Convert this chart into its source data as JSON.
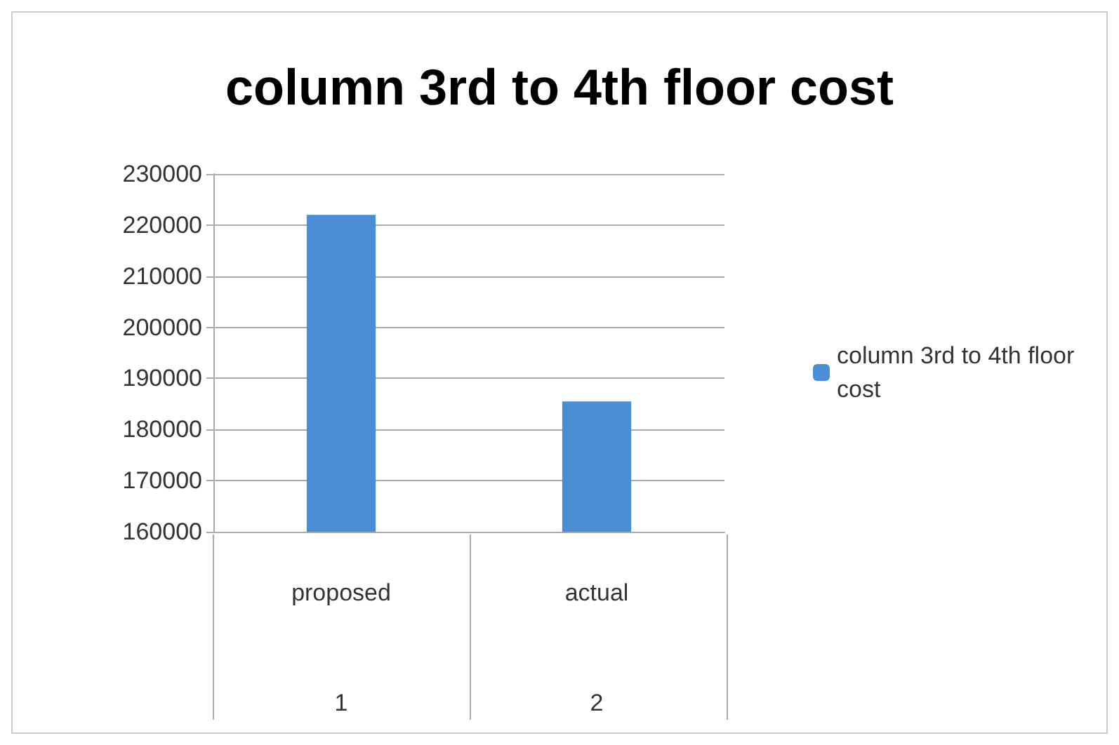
{
  "chart_data": {
    "type": "bar",
    "title": "column 3rd to 4th floor cost",
    "categories": [
      "proposed",
      "actual"
    ],
    "series": [
      {
        "name": "column 3rd to 4th floor cost",
        "color": "#4a8fd6",
        "values": [
          222000,
          185500
        ]
      }
    ],
    "ylim": [
      160000,
      230000
    ],
    "yticks": [
      160000,
      170000,
      180000,
      190000,
      200000,
      210000,
      220000,
      230000
    ],
    "grid": "y",
    "legend": "right",
    "annotations": [
      "1",
      "2"
    ]
  }
}
